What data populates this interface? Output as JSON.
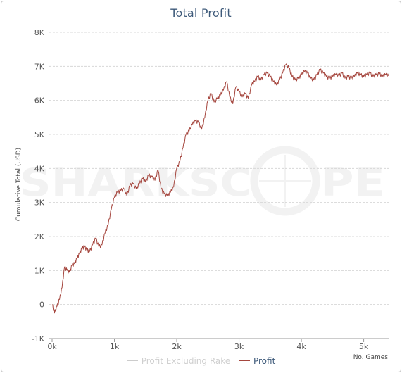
{
  "chart_data": {
    "type": "line",
    "title": "Total Profit",
    "ylabel": "Cumulative Total (USD)",
    "xlabel": "No. Games",
    "xlim": [
      0,
      5400
    ],
    "ylim": [
      -1000,
      8000
    ],
    "x_ticks": [
      "0k",
      "1k",
      "2k",
      "3k",
      "4k",
      "5k"
    ],
    "y_ticks": [
      "-1K",
      "0",
      "1K",
      "2K",
      "3K",
      "4K",
      "5K",
      "6K",
      "7K",
      "8K"
    ],
    "grid": true,
    "legend_position": "bottom-center",
    "watermark": "SHARKSCOPE",
    "colors": {
      "profit": "#a5463e",
      "profit_excluding_rake": "#cccccc",
      "title": "#3e5a7a"
    },
    "series": [
      {
        "name": "Profit Excluding Rake",
        "visible": false,
        "x": [],
        "y": []
      },
      {
        "name": "Profit",
        "visible": true,
        "x": [
          0,
          40,
          80,
          120,
          160,
          200,
          240,
          280,
          320,
          360,
          400,
          440,
          480,
          520,
          560,
          600,
          650,
          700,
          750,
          800,
          850,
          900,
          950,
          1000,
          1050,
          1100,
          1150,
          1200,
          1250,
          1300,
          1350,
          1400,
          1450,
          1500,
          1550,
          1600,
          1650,
          1700,
          1750,
          1800,
          1850,
          1900,
          1950,
          2000,
          2050,
          2100,
          2150,
          2200,
          2250,
          2300,
          2350,
          2400,
          2450,
          2500,
          2550,
          2600,
          2650,
          2700,
          2750,
          2800,
          2850,
          2900,
          2950,
          3000,
          3050,
          3100,
          3150,
          3200,
          3250,
          3300,
          3350,
          3400,
          3450,
          3500,
          3550,
          3600,
          3650,
          3700,
          3750,
          3800,
          3850,
          3900,
          3950,
          4000,
          4050,
          4100,
          4150,
          4200,
          4250,
          4300,
          4350,
          4400,
          4450,
          4500,
          4550,
          4600,
          4650,
          4700,
          4750,
          4800,
          4850,
          4900,
          4950,
          5000,
          5050,
          5100,
          5150,
          5200,
          5250,
          5300,
          5350,
          5400
        ],
        "y": [
          0,
          -250,
          -50,
          150,
          500,
          1100,
          1000,
          950,
          1150,
          1200,
          1350,
          1500,
          1650,
          1700,
          1600,
          1550,
          1750,
          1950,
          1700,
          1750,
          2100,
          2350,
          2800,
          3150,
          3300,
          3350,
          3400,
          3200,
          3500,
          3550,
          3400,
          3550,
          3700,
          3600,
          3800,
          3750,
          3650,
          3950,
          3400,
          3250,
          3200,
          3300,
          3450,
          4000,
          4200,
          4600,
          5000,
          5100,
          5300,
          5400,
          5350,
          5150,
          5500,
          6000,
          6200,
          5950,
          6050,
          6150,
          6300,
          6550,
          6100,
          5900,
          6400,
          6250,
          6100,
          6200,
          6050,
          6450,
          6550,
          6700,
          6600,
          6750,
          6800,
          6700,
          6550,
          6450,
          6600,
          6800,
          7050,
          6950,
          6700,
          6600,
          6650,
          6750,
          6850,
          6800,
          6650,
          6600,
          6750,
          6900,
          6800,
          6700,
          6650,
          6700,
          6750,
          6720,
          6800,
          6650,
          6700,
          6650,
          6700,
          6800,
          6750,
          6700,
          6750,
          6800,
          6700,
          6750,
          6780,
          6700,
          6750,
          6720
        ]
      }
    ]
  }
}
